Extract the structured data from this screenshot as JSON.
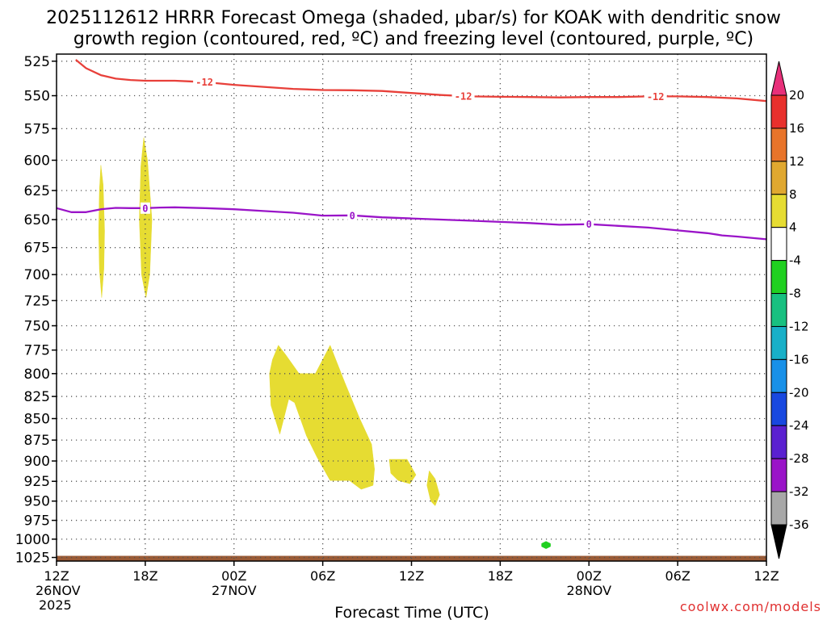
{
  "title_line1": "2025112612 HRRR Forecast Omega (shaded, μbar/s) for KOAK with dendritic snow",
  "title_line2": "growth region (contoured, red, ºC) and freezing level (contoured, purple, ºC)",
  "watermark": "coolwx.com/models",
  "chart_data": {
    "type": "heatmap",
    "title": "2025112612 HRRR Forecast Omega (shaded, μbar/s) for KOAK with dendritic snow growth region (contoured, red, ºC) and freezing level (contoured, purple, ºC)",
    "xlabel": "Forecast Time (UTC)",
    "ylabel": "",
    "x_unit": "forecast hour since 2025-11-26 12Z",
    "xlim": [
      0,
      48
    ],
    "ylim": [
      1030,
      520
    ],
    "y_scale": "log-pressure (inverted)",
    "grid": true,
    "x_ticks": [
      {
        "hour": 0,
        "label": "12Z",
        "sub1": "26NOV",
        "sub2": "2025"
      },
      {
        "hour": 6,
        "label": "18Z",
        "sub1": "",
        "sub2": ""
      },
      {
        "hour": 12,
        "label": "00Z",
        "sub1": "27NOV",
        "sub2": ""
      },
      {
        "hour": 18,
        "label": "06Z",
        "sub1": "",
        "sub2": ""
      },
      {
        "hour": 24,
        "label": "12Z",
        "sub1": "",
        "sub2": ""
      },
      {
        "hour": 30,
        "label": "18Z",
        "sub1": "",
        "sub2": ""
      },
      {
        "hour": 36,
        "label": "00Z",
        "sub1": "28NOV",
        "sub2": ""
      },
      {
        "hour": 42,
        "label": "06Z",
        "sub1": "",
        "sub2": ""
      },
      {
        "hour": 48,
        "label": "12Z",
        "sub1": "",
        "sub2": ""
      }
    ],
    "y_ticks": [
      525,
      550,
      575,
      600,
      625,
      650,
      675,
      700,
      725,
      750,
      775,
      800,
      825,
      850,
      875,
      900,
      925,
      950,
      975,
      1000,
      1025
    ],
    "contours": [
      {
        "name": "dendritic snow growth (-12 ºC)",
        "label": "-12",
        "color": "#e8403a",
        "points": [
          [
            1.3,
            524
          ],
          [
            2,
            530
          ],
          [
            3,
            535
          ],
          [
            4,
            537.5
          ],
          [
            5,
            538.5
          ],
          [
            6,
            539
          ],
          [
            7,
            539
          ],
          [
            8,
            539
          ],
          [
            9,
            539.5
          ],
          [
            10,
            540
          ],
          [
            11,
            541
          ],
          [
            12,
            542
          ],
          [
            14,
            543.5
          ],
          [
            16,
            545
          ],
          [
            18,
            545.8
          ],
          [
            20,
            546
          ],
          [
            22,
            546.5
          ],
          [
            24,
            548
          ],
          [
            26,
            549.5
          ],
          [
            28,
            550.5
          ],
          [
            30,
            550.8
          ],
          [
            32,
            551
          ],
          [
            34,
            551.3
          ],
          [
            36,
            551
          ],
          [
            38,
            551
          ],
          [
            40,
            550.5
          ],
          [
            42,
            550.5
          ],
          [
            44,
            551
          ],
          [
            46,
            552
          ],
          [
            48,
            554
          ]
        ],
        "label_hours": [
          10,
          27.5,
          40.5
        ]
      },
      {
        "name": "freezing level (0 ºC)",
        "label": "0",
        "color": "#9a14c8",
        "points": [
          [
            0,
            640
          ],
          [
            1,
            643.5
          ],
          [
            2,
            643.5
          ],
          [
            3,
            641
          ],
          [
            4,
            639.8
          ],
          [
            5,
            640
          ],
          [
            6,
            640
          ],
          [
            7,
            639.5
          ],
          [
            8,
            639.3
          ],
          [
            10,
            640
          ],
          [
            12,
            641
          ],
          [
            14,
            642.5
          ],
          [
            16,
            644
          ],
          [
            18,
            646.5
          ],
          [
            20,
            646.3
          ],
          [
            22,
            648
          ],
          [
            24,
            649
          ],
          [
            26,
            650
          ],
          [
            28,
            651
          ],
          [
            30,
            652
          ],
          [
            32,
            653
          ],
          [
            34,
            654.5
          ],
          [
            36,
            654
          ],
          [
            38,
            655.5
          ],
          [
            40,
            657
          ],
          [
            42,
            659.5
          ],
          [
            44,
            662
          ],
          [
            45,
            664
          ],
          [
            46,
            665
          ],
          [
            48,
            667.5
          ]
        ],
        "label_hours": [
          6,
          20,
          36
        ]
      }
    ],
    "omega_regions": [
      {
        "value_range": "4 to 8",
        "color": "#e6dc32",
        "points": [
          [
            3,
            604
          ],
          [
            3.15,
            620
          ],
          [
            3.25,
            660
          ],
          [
            3.2,
            695
          ],
          [
            3.05,
            722
          ],
          [
            2.9,
            695
          ],
          [
            2.85,
            660
          ],
          [
            2.9,
            625
          ]
        ]
      },
      {
        "value_range": "4 to 8",
        "color": "#e6dc32",
        "points": [
          [
            5.9,
            582
          ],
          [
            6.15,
            600
          ],
          [
            6.45,
            650
          ],
          [
            6.3,
            700
          ],
          [
            6.05,
            722
          ],
          [
            5.75,
            700
          ],
          [
            5.6,
            650
          ],
          [
            5.7,
            605
          ]
        ]
      },
      {
        "value_range": "4 to 8",
        "color": "#e6dc32",
        "points": [
          [
            15,
            770
          ],
          [
            15.5,
            780
          ],
          [
            16.4,
            800
          ],
          [
            17.5,
            800
          ],
          [
            18.5,
            770
          ],
          [
            19.5,
            810
          ],
          [
            20.5,
            850
          ],
          [
            21.3,
            880
          ],
          [
            21.5,
            910
          ],
          [
            21.4,
            930
          ],
          [
            20.6,
            935
          ],
          [
            19.8,
            924
          ],
          [
            18.5,
            924
          ],
          [
            17.6,
            895
          ],
          [
            16.9,
            870
          ],
          [
            16.1,
            832
          ],
          [
            15.7,
            828
          ],
          [
            15.1,
            868
          ],
          [
            14.5,
            835
          ],
          [
            14.4,
            800
          ],
          [
            14.6,
            785
          ]
        ]
      },
      {
        "value_range": "4 to 8",
        "color": "#e6dc32",
        "points": [
          [
            22.5,
            898
          ],
          [
            23.7,
            898
          ],
          [
            24.3,
            917
          ],
          [
            23.9,
            928
          ],
          [
            23.1,
            924
          ],
          [
            22.6,
            915
          ]
        ]
      },
      {
        "value_range": "4 to 8",
        "color": "#e6dc32",
        "points": [
          [
            25.2,
            912
          ],
          [
            25.6,
            922
          ],
          [
            25.9,
            942
          ],
          [
            25.6,
            956
          ],
          [
            25.3,
            950
          ],
          [
            25.05,
            930
          ]
        ]
      },
      {
        "value_range": "-8 to -4",
        "color": "#20d020",
        "points": [
          [
            33.1,
            1003
          ],
          [
            33.4,
            1006
          ],
          [
            33.4,
            1010
          ],
          [
            33.1,
            1013
          ],
          [
            32.8,
            1010
          ],
          [
            32.8,
            1006
          ]
        ]
      }
    ],
    "terrain": {
      "color": "#9a5a35",
      "top_pressure": 1025,
      "bottom_pressure": 1030
    },
    "colorbar": {
      "labels": [
        "20",
        "16",
        "12",
        "8",
        "4",
        "-4",
        "-8",
        "-12",
        "-16",
        "-20",
        "-24",
        "-28",
        "-32",
        "-36"
      ],
      "colors": [
        "#e8307a",
        "#e8302c",
        "#e8742a",
        "#e0a830",
        "#e6dc32",
        "#ffffff",
        "#20d020",
        "#18c080",
        "#18b0c8",
        "#1890e8",
        "#1848e0",
        "#5a20d0",
        "#9a14c8",
        "#a8a8a8",
        "#000000"
      ]
    }
  }
}
